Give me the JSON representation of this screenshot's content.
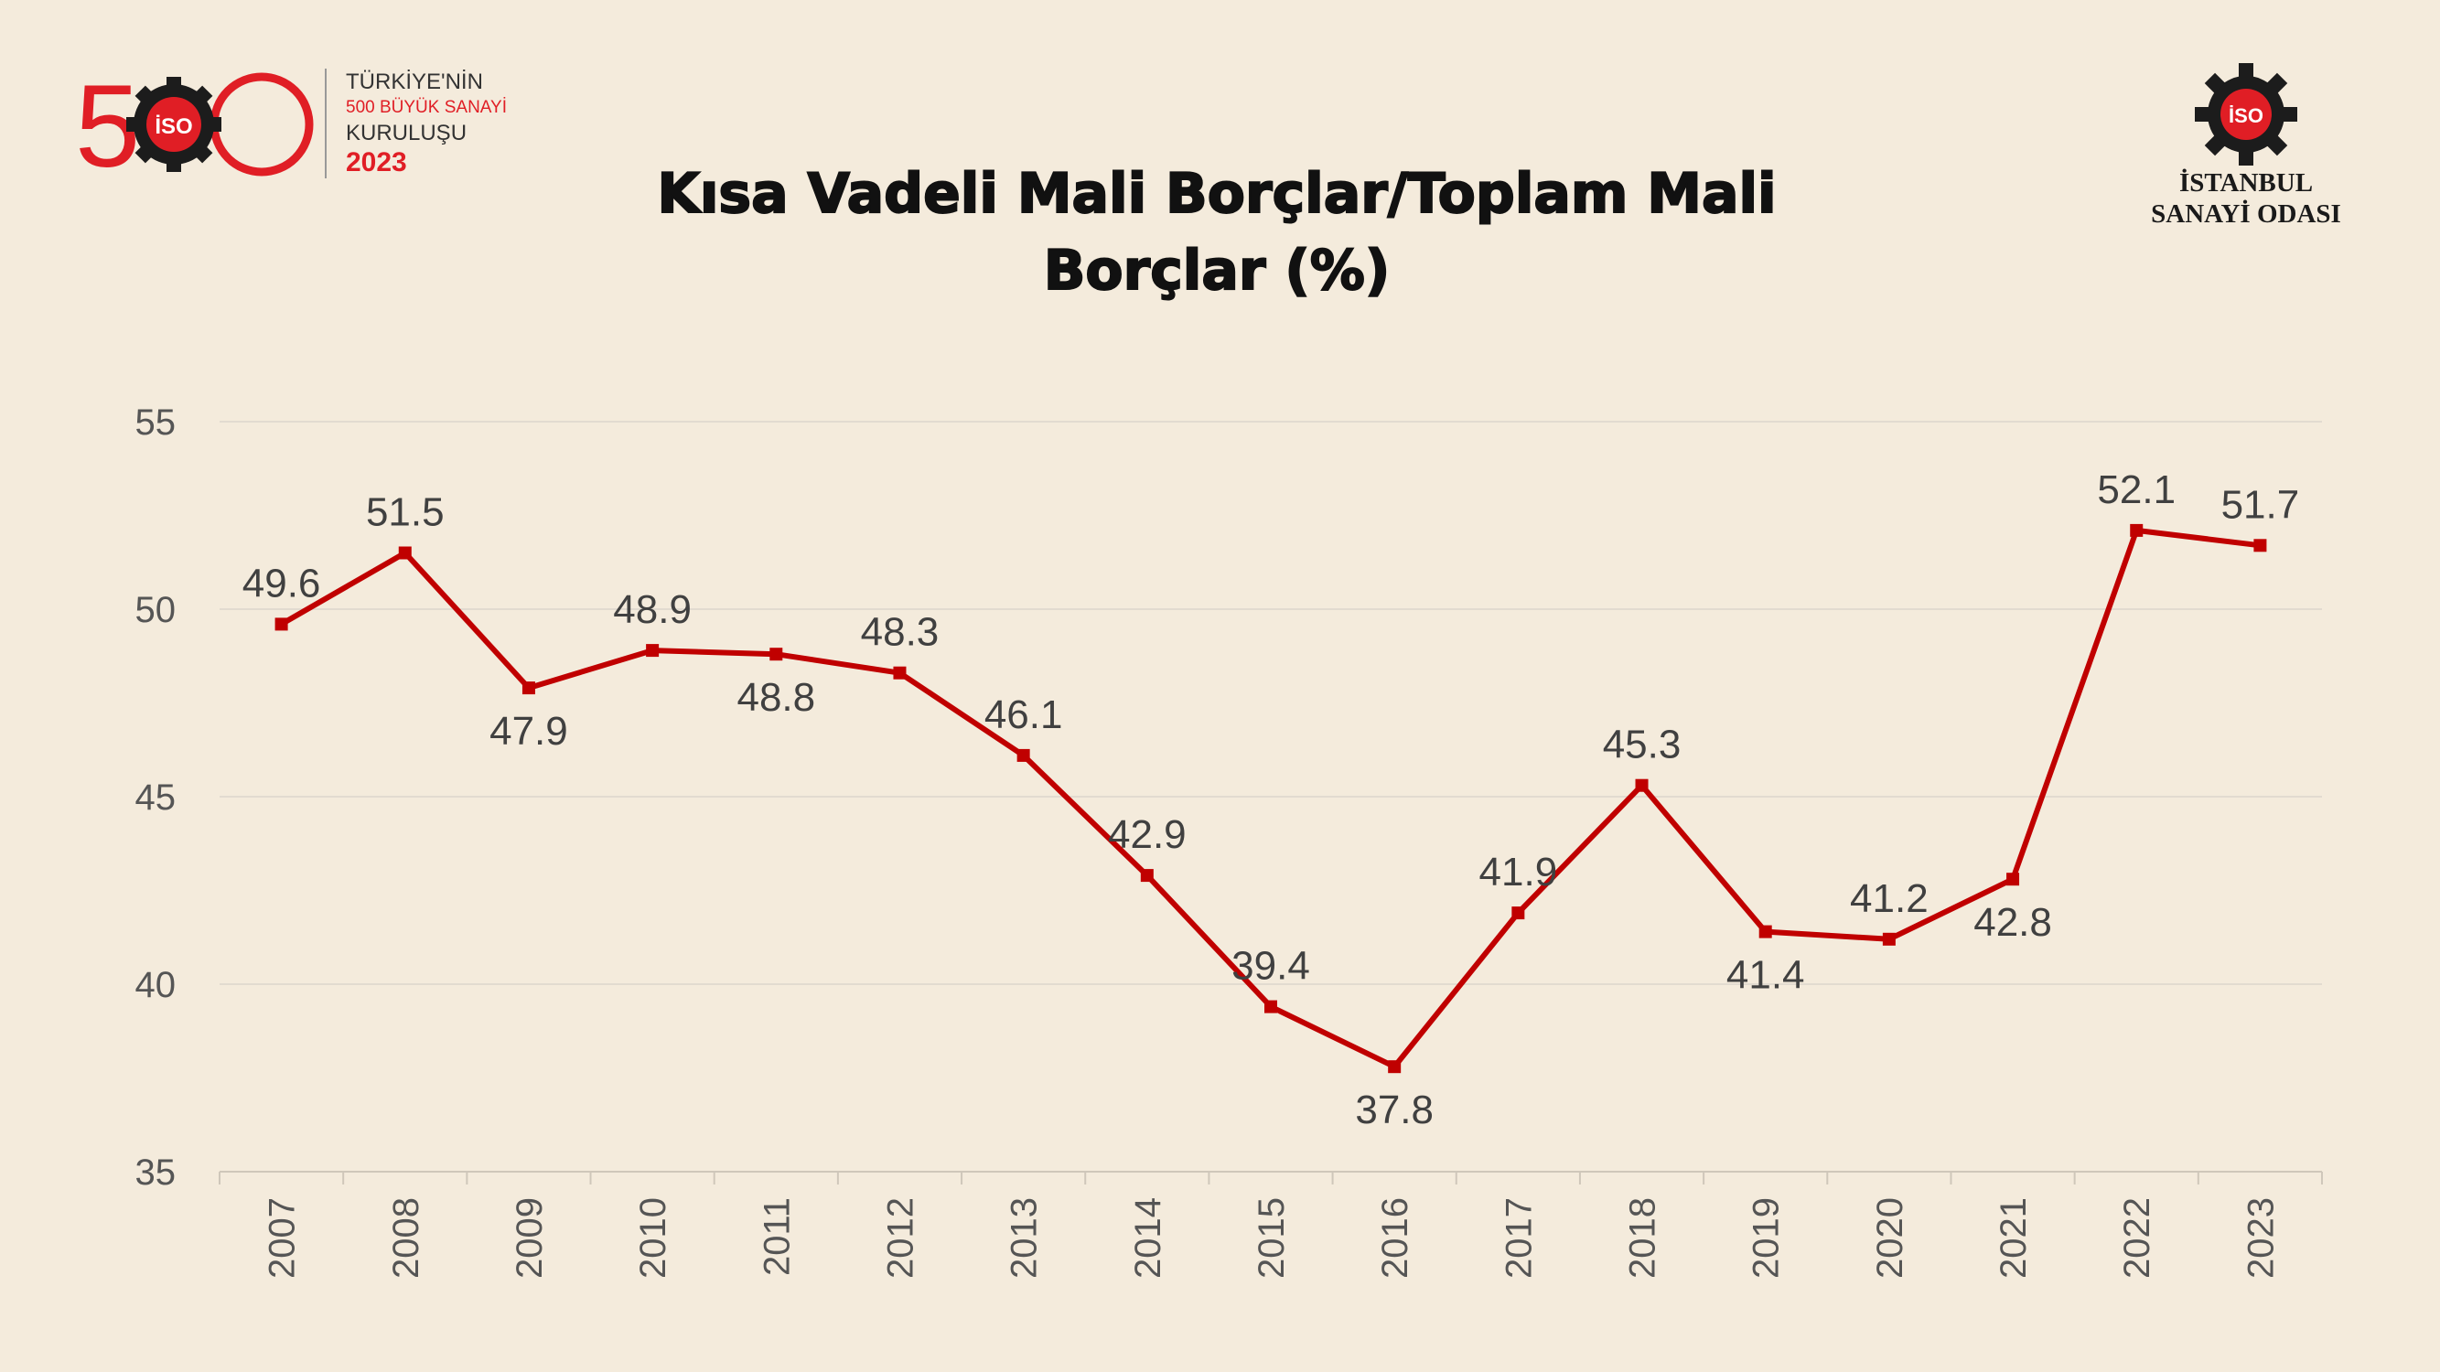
{
  "logo_left": {
    "number": "500",
    "badge": "İSO",
    "line1": "TÜRKİYE'NİN",
    "line2": "500 BÜYÜK SANAYİ",
    "line3": "KURULUŞU",
    "line4": "2023"
  },
  "logo_right": {
    "badge": "İSO",
    "line1": "İSTANBUL",
    "line2": "SANAYİ ODASI"
  },
  "colors": {
    "background": "#f4ebdc",
    "series": "#c00000",
    "grid": "#e2dbd0",
    "axis_text": "#555555",
    "brand_red": "#e01e25"
  },
  "chart_data": {
    "type": "line",
    "title_line1": "Kısa Vadeli Mali Borçlar/Toplam Mali",
    "title_line2": "Borçlar (%)",
    "xlabel": "",
    "ylabel": "",
    "ylim": [
      35,
      55
    ],
    "yticks": [
      35,
      40,
      45,
      50,
      55
    ],
    "grid": true,
    "categories": [
      "2007",
      "2008",
      "2009",
      "2010",
      "2011",
      "2012",
      "2013",
      "2014",
      "2015",
      "2016",
      "2017",
      "2018",
      "2019",
      "2020",
      "2021",
      "2022",
      "2023"
    ],
    "series": [
      {
        "name": "Kısa Vadeli Mali Borçlar/Toplam Mali Borçlar (%)",
        "values": [
          49.6,
          51.5,
          47.9,
          48.9,
          48.8,
          48.3,
          46.1,
          42.9,
          39.4,
          37.8,
          41.9,
          45.3,
          41.4,
          41.2,
          42.8,
          52.1,
          51.7
        ],
        "labels": [
          "49.6",
          "51.5",
          "47.9",
          "48.9",
          "48.8",
          "48.3",
          "46.1",
          "42.9",
          "39.4",
          "37.8",
          "41.9",
          "45.3",
          "41.4",
          "41.2",
          "42.8",
          "52.1",
          "51.7"
        ],
        "label_positions": [
          "above",
          "above",
          "below",
          "above",
          "below",
          "above",
          "above",
          "above",
          "above",
          "below",
          "above",
          "above",
          "below",
          "above",
          "below",
          "above",
          "above"
        ]
      }
    ]
  }
}
